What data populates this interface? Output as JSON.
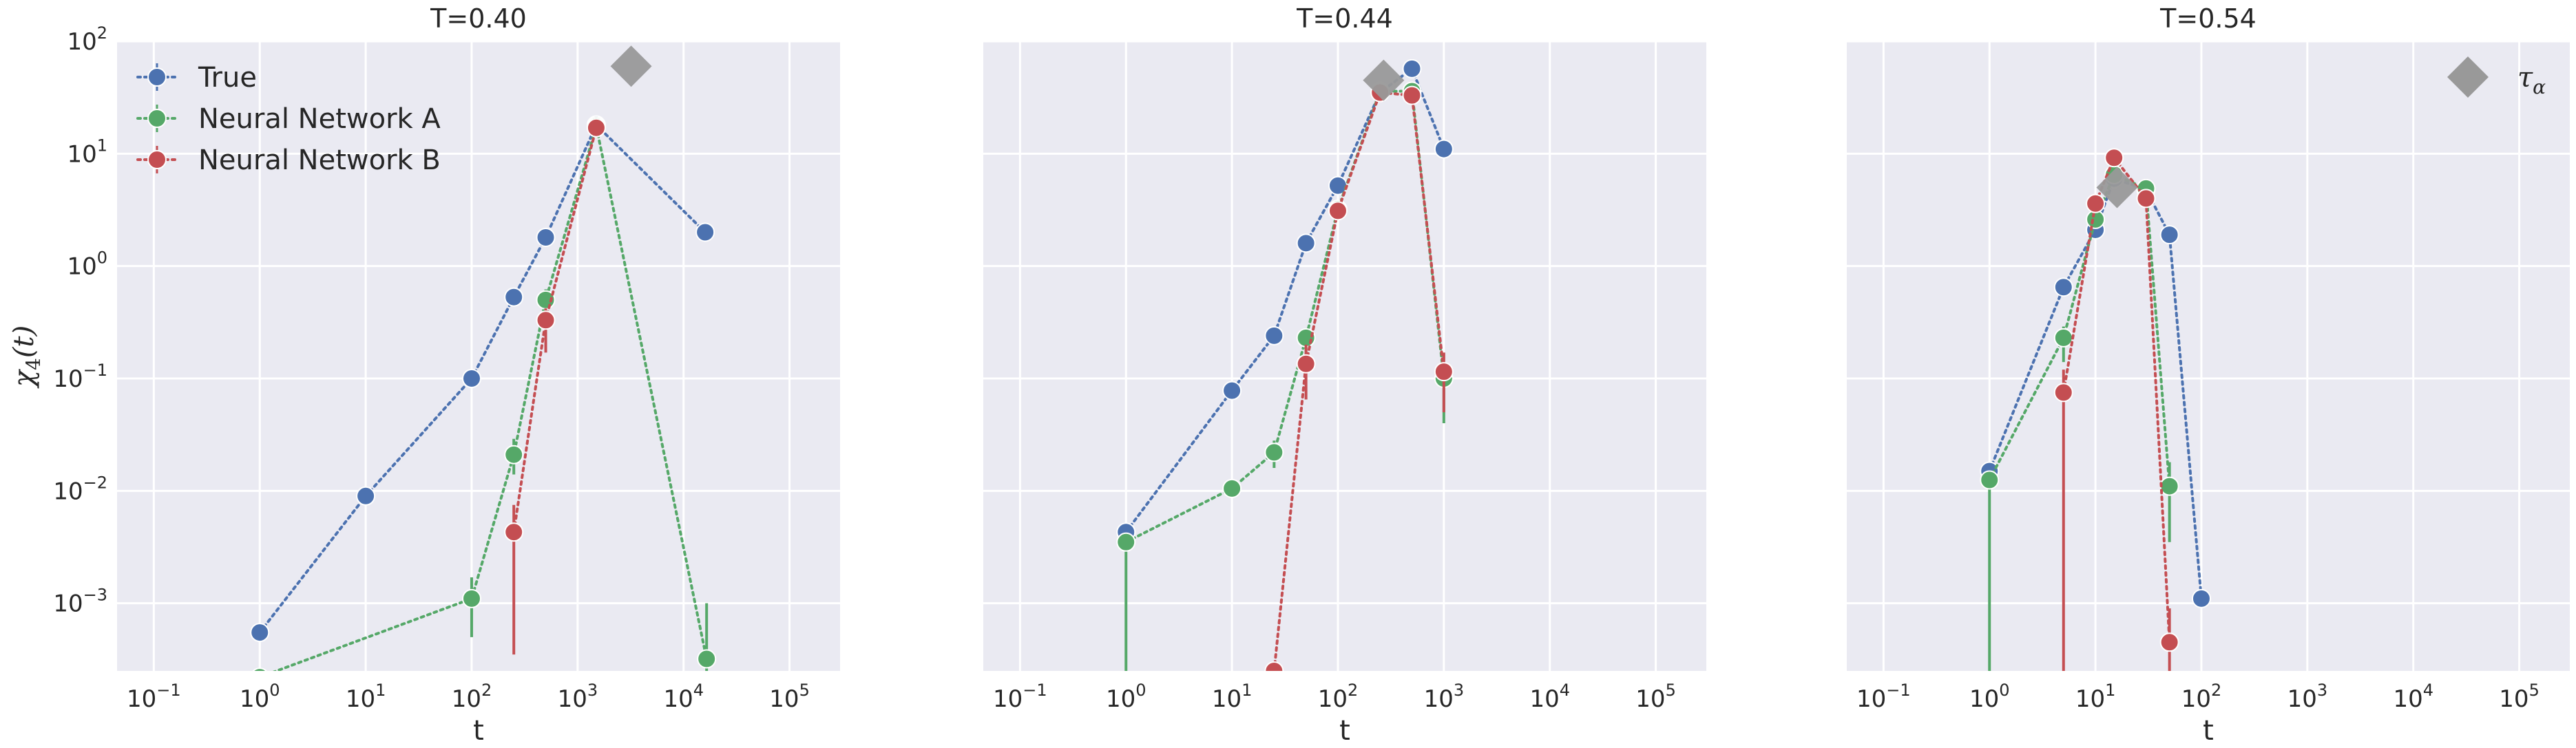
{
  "figure": {
    "y_axis_label": "χ4(t)",
    "y_axis_label_parts": {
      "base": "χ",
      "sub": "4",
      "arg": "(t)"
    },
    "background": "#eaeaf2",
    "grid_color": "#ffffff",
    "text_color": "#262626"
  },
  "legend_items": [
    {
      "series": "True",
      "label": "True",
      "color": "#4c72b0"
    },
    {
      "series": "A",
      "label": "Neural Network A",
      "color": "#55a868"
    },
    {
      "series": "B",
      "label": "Neural Network B",
      "color": "#c44e52"
    }
  ],
  "tau_legend": {
    "label_base": "τ",
    "label_sub": "α",
    "color": "#999999",
    "marker": "diamond"
  },
  "chart_data": [
    {
      "type": "line",
      "title": "T=0.40",
      "xlabel": "t",
      "ylabel": "χ4(t)",
      "x_scale": "log",
      "y_scale": "log",
      "xlim": [
        0.045,
        300000
      ],
      "ylim": [
        0.00025,
        100
      ],
      "x_ticks": [
        {
          "base": "10",
          "exp": "−1",
          "value": 0.1
        },
        {
          "base": "10",
          "exp": "0",
          "value": 1
        },
        {
          "base": "10",
          "exp": "1",
          "value": 10
        },
        {
          "base": "10",
          "exp": "2",
          "value": 100
        },
        {
          "base": "10",
          "exp": "3",
          "value": 1000
        },
        {
          "base": "10",
          "exp": "4",
          "value": 10000
        },
        {
          "base": "10",
          "exp": "5",
          "value": 100000
        }
      ],
      "y_ticks": [
        {
          "base": "10",
          "exp": "−3",
          "value": 0.001
        },
        {
          "base": "10",
          "exp": "−2",
          "value": 0.01
        },
        {
          "base": "10",
          "exp": "−1",
          "value": 0.1
        },
        {
          "base": "10",
          "exp": "0",
          "value": 1
        },
        {
          "base": "10",
          "exp": "1",
          "value": 10
        },
        {
          "base": "10",
          "exp": "2",
          "value": 100
        }
      ],
      "grid": true,
      "legend": "upper-left",
      "series": [
        {
          "key": "True",
          "name": "True",
          "color": "#4c72b0",
          "x": [
            1,
            10,
            100,
            250,
            500,
            1500,
            16000
          ],
          "y": [
            0.00055,
            0.009,
            0.1,
            0.53,
            1.8,
            18,
            2.0
          ]
        },
        {
          "key": "A",
          "name": "Neural Network A",
          "color": "#55a868",
          "x": [
            1,
            100,
            250,
            500,
            1500,
            16500
          ],
          "y": [
            0.00022,
            0.0011,
            0.021,
            0.5,
            17.5,
            0.00032
          ],
          "yerr_low": [
            null,
            0.0005,
            0.014,
            0.38,
            null,
            0.00018
          ],
          "yerr_high": [
            null,
            0.0017,
            0.029,
            0.62,
            null,
            0.001
          ]
        },
        {
          "key": "B",
          "name": "Neural Network B",
          "color": "#c44e52",
          "x": [
            250,
            500,
            1500
          ],
          "y": [
            0.0043,
            0.33,
            17
          ],
          "yerr_low": [
            0.00035,
            0.17,
            null
          ],
          "yerr_high": [
            0.0075,
            0.42,
            null
          ]
        }
      ],
      "tau_alpha": {
        "x": 3200,
        "y": 60
      }
    },
    {
      "type": "line",
      "title": "T=0.44",
      "xlabel": "t",
      "x_scale": "log",
      "y_scale": "log",
      "xlim": [
        0.045,
        300000
      ],
      "ylim": [
        0.00025,
        100
      ],
      "x_ticks": [
        {
          "base": "10",
          "exp": "−1",
          "value": 0.1
        },
        {
          "base": "10",
          "exp": "0",
          "value": 1
        },
        {
          "base": "10",
          "exp": "1",
          "value": 10
        },
        {
          "base": "10",
          "exp": "2",
          "value": 100
        },
        {
          "base": "10",
          "exp": "3",
          "value": 1000
        },
        {
          "base": "10",
          "exp": "4",
          "value": 10000
        },
        {
          "base": "10",
          "exp": "5",
          "value": 100000
        }
      ],
      "grid": true,
      "series": [
        {
          "key": "True",
          "name": "True",
          "color": "#4c72b0",
          "x": [
            1,
            10,
            25,
            50,
            100,
            250,
            500,
            1000
          ],
          "y": [
            0.0043,
            0.078,
            0.24,
            1.6,
            5.2,
            35,
            57,
            11
          ]
        },
        {
          "key": "A",
          "name": "Neural Network A",
          "color": "#55a868",
          "x": [
            1,
            10,
            25,
            50,
            100,
            250,
            500,
            1000
          ],
          "y": [
            0.0035,
            0.0105,
            0.022,
            0.23,
            3.2,
            36,
            36,
            0.1
          ],
          "yerr_low": [
            0.00025,
            null,
            0.016,
            0.16,
            null,
            null,
            null,
            0.04
          ],
          "yerr_high": [
            null,
            null,
            0.028,
            0.28,
            null,
            null,
            null,
            0.14
          ]
        },
        {
          "key": "B",
          "name": "Neural Network B",
          "color": "#c44e52",
          "x": [
            25,
            50,
            100,
            250,
            500,
            1000
          ],
          "y": [
            0.00025,
            0.135,
            3.1,
            35,
            33,
            0.115
          ],
          "yerr_low": [
            null,
            0.065,
            null,
            null,
            null,
            0.05
          ],
          "yerr_high": [
            null,
            0.2,
            null,
            null,
            null,
            0.17
          ]
        }
      ],
      "tau_alpha": {
        "x": 270,
        "y": 45
      }
    },
    {
      "type": "line",
      "title": "T=0.54",
      "xlabel": "t",
      "x_scale": "log",
      "y_scale": "log",
      "xlim": [
        0.045,
        300000
      ],
      "ylim": [
        0.00025,
        100
      ],
      "x_ticks": [
        {
          "base": "10",
          "exp": "−1",
          "value": 0.1
        },
        {
          "base": "10",
          "exp": "0",
          "value": 1
        },
        {
          "base": "10",
          "exp": "1",
          "value": 10
        },
        {
          "base": "10",
          "exp": "2",
          "value": 100
        },
        {
          "base": "10",
          "exp": "3",
          "value": 1000
        },
        {
          "base": "10",
          "exp": "4",
          "value": 10000
        },
        {
          "base": "10",
          "exp": "5",
          "value": 100000
        }
      ],
      "grid": true,
      "legend": "upper-right",
      "series": [
        {
          "key": "True",
          "name": "True",
          "color": "#4c72b0",
          "x": [
            1,
            5,
            10,
            15,
            30,
            50,
            100
          ],
          "y": [
            0.015,
            0.65,
            2.1,
            6,
            4.8,
            1.9,
            0.0011
          ]
        },
        {
          "key": "A",
          "name": "Neural Network A",
          "color": "#55a868",
          "x": [
            1,
            5,
            10,
            15,
            30,
            50
          ],
          "y": [
            0.0125,
            0.23,
            2.6,
            6.5,
            4.9,
            0.011
          ],
          "yerr_low": [
            0.00025,
            0.14,
            null,
            null,
            null,
            0.0035
          ],
          "yerr_high": [
            null,
            0.29,
            null,
            null,
            null,
            0.018
          ]
        },
        {
          "key": "B",
          "name": "Neural Network B",
          "color": "#c44e52",
          "x": [
            5,
            10,
            15,
            30,
            50
          ],
          "y": [
            0.075,
            3.6,
            9.2,
            4,
            0.00045
          ],
          "yerr_low": [
            0.00025,
            null,
            null,
            null,
            0.00025
          ],
          "yerr_high": [
            0.12,
            null,
            null,
            null,
            0.0009
          ]
        }
      ],
      "tau_alpha": {
        "x": 16,
        "y": 5
      }
    }
  ]
}
